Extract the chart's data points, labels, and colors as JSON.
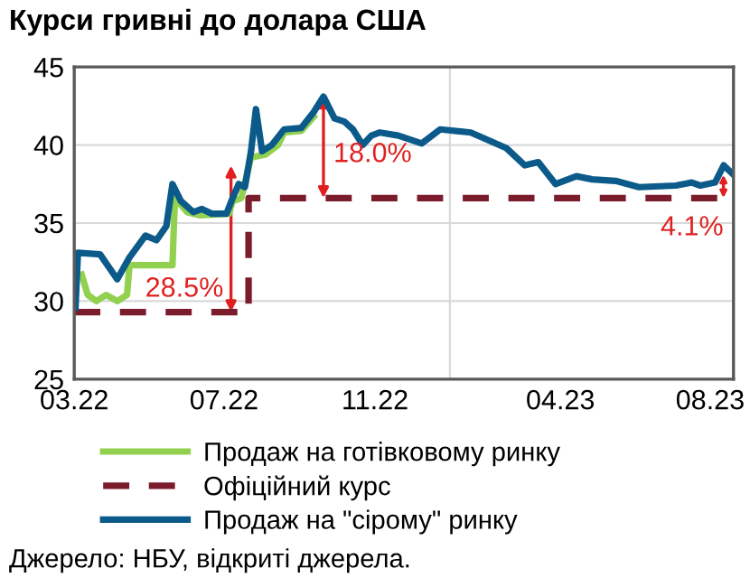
{
  "chart_data": {
    "type": "line",
    "title": "Курси гривні до долара США",
    "series": [
      {
        "name": "Продаж на готівковому ринку",
        "color": "#92d050",
        "x": [
          "2022-03-07",
          "2022-03-12",
          "2022-03-19",
          "2022-03-27",
          "2022-04-05",
          "2022-04-13",
          "2022-04-15",
          "2022-05-02",
          "2022-05-20",
          "2022-05-22",
          "2022-06-01",
          "2022-06-11",
          "2022-07-05",
          "2022-07-08",
          "2022-07-15",
          "2022-07-23",
          "2022-08-04",
          "2022-08-14",
          "2022-08-19",
          "2022-09-02",
          "2022-09-12"
        ],
        "values": [
          31.7,
          30.4,
          30.0,
          30.4,
          30.0,
          30.4,
          32.3,
          32.3,
          32.3,
          36.6,
          35.7,
          35.5,
          35.6,
          36.4,
          36.6,
          39.2,
          39.4,
          40.0,
          40.8,
          40.9,
          41.8
        ]
      },
      {
        "name": "Офіційний курс",
        "type": "step",
        "color": "#7b1c2c",
        "line_style": "dashed",
        "x": [
          "2022-03-01",
          "2022-07-21",
          "2023-08-20"
        ],
        "values": [
          29.3,
          36.6,
          36.6
        ]
      },
      {
        "name": "Продаж на \"сірому\" ринку",
        "color": "#0b5a8a",
        "x": [
          "2022-03-02",
          "2022-03-04",
          "2022-03-22",
          "2022-04-05",
          "2022-04-15",
          "2022-04-28",
          "2022-05-07",
          "2022-05-15",
          "2022-05-20",
          "2022-05-27",
          "2022-06-06",
          "2022-06-13",
          "2022-06-21",
          "2022-07-03",
          "2022-07-08",
          "2022-07-13",
          "2022-07-18",
          "2022-07-23",
          "2022-07-27",
          "2022-08-01",
          "2022-08-09",
          "2022-08-19",
          "2022-09-02",
          "2022-09-12",
          "2022-09-20",
          "2022-09-29",
          "2022-10-07",
          "2022-10-14",
          "2022-10-22",
          "2022-10-29",
          "2022-11-05",
          "2022-11-20",
          "2022-12-09",
          "2022-12-24",
          "2023-01-18",
          "2023-02-16",
          "2023-03-03",
          "2023-03-14",
          "2023-03-28",
          "2023-04-14",
          "2023-04-27",
          "2023-05-16",
          "2023-06-04",
          "2023-07-04",
          "2023-07-17",
          "2023-07-24",
          "2023-08-05",
          "2023-08-12",
          "2023-08-20"
        ],
        "values": [
          29.6,
          33.1,
          33.0,
          31.4,
          32.8,
          34.2,
          33.9,
          34.8,
          37.5,
          36.4,
          35.7,
          35.9,
          35.6,
          35.6,
          36.6,
          37.5,
          37.3,
          39.6,
          42.3,
          39.6,
          40.0,
          41.0,
          41.1,
          42.1,
          43.1,
          41.7,
          41.5,
          41.0,
          40.0,
          40.6,
          40.8,
          40.6,
          40.1,
          41.0,
          40.8,
          39.8,
          38.7,
          38.9,
          37.5,
          38.0,
          37.8,
          37.7,
          37.3,
          37.4,
          37.6,
          37.4,
          37.6,
          38.7,
          38.1
        ]
      }
    ],
    "xlim": [
      "2022-03-01",
      "2023-08-20"
    ],
    "xticks": [
      {
        "value": "2022-03-01",
        "label": "03.22"
      },
      {
        "value": "2022-07-01",
        "label": "07.22"
      },
      {
        "value": "2022-11-01",
        "label": "11.22"
      },
      {
        "value": "2023-04-01",
        "label": "04.23"
      },
      {
        "value": "2023-08-01",
        "label": "08.23"
      }
    ],
    "ylim": [
      25,
      45
    ],
    "yticks": [
      25,
      30,
      35,
      40,
      45
    ],
    "grid": "y",
    "legend": "bottom",
    "ref_lines": [
      {
        "axis": "x",
        "value": "2023-01-01",
        "color": "#d9d9d9"
      }
    ],
    "annotations": [
      "28.5%",
      {
        "text": "18.0%",
        "x": "2022-09-20",
        "y": 43.1
      },
      "4.1%",
      "Джерело: НБУ, відкриті джерела."
    ]
  }
}
